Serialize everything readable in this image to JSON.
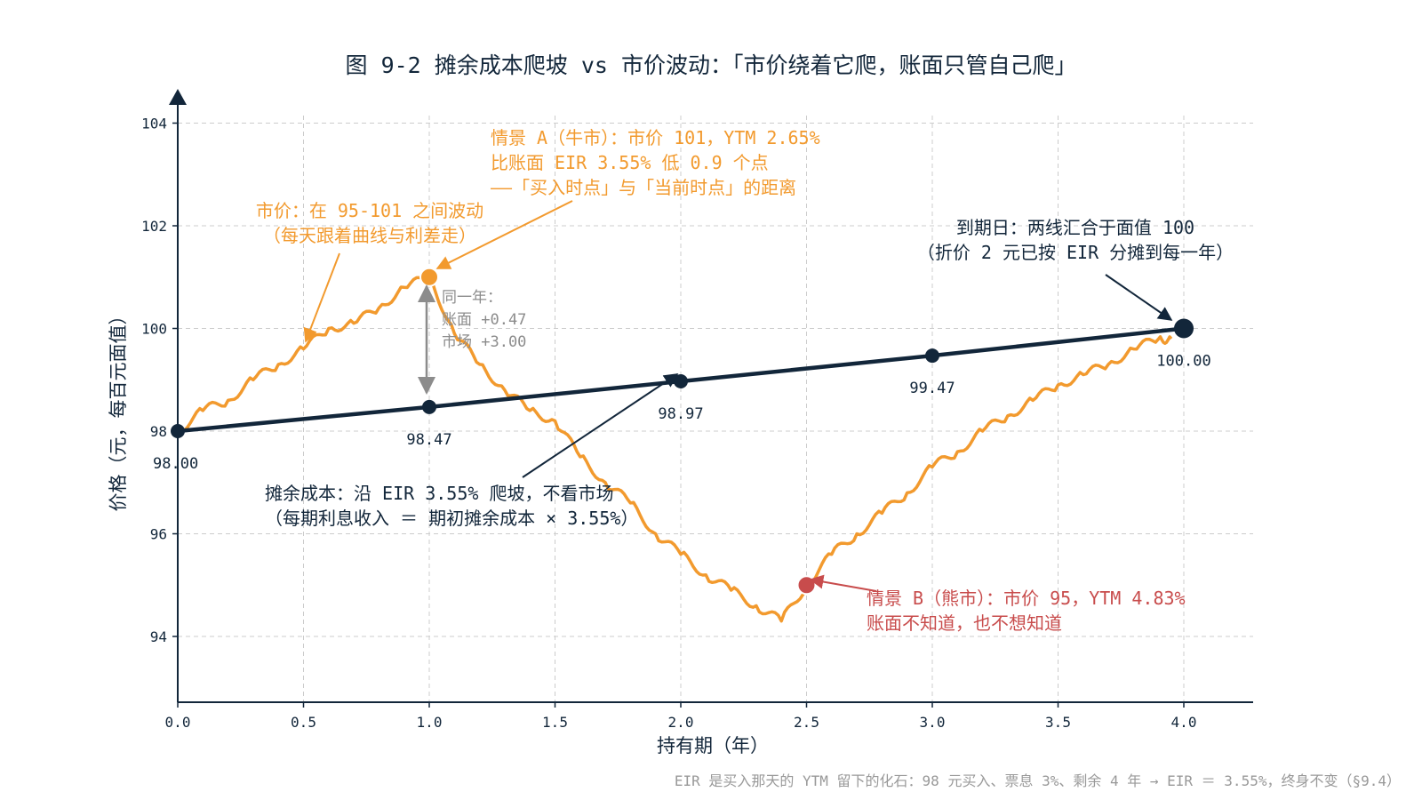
{
  "chart_data": {
    "type": "line",
    "title": "图 9-2 摊余成本爬坡 vs 市价波动：「市价绕着它爬，账面只管自己爬」",
    "xlabel": "持有期（年）",
    "ylabel": "价格（元，每百元面值）",
    "xlim": [
      0,
      4.35
    ],
    "ylim": [
      92.5,
      104.5
    ],
    "x_ticks": [
      "0.0",
      "0.5",
      "1.0",
      "1.5",
      "2.0",
      "2.5",
      "3.0",
      "3.5",
      "4.0"
    ],
    "y_ticks": [
      "94",
      "96",
      "98",
      "100",
      "102",
      "104"
    ],
    "grid": true,
    "series": [
      {
        "name": "摊余成本",
        "color": "#12263a",
        "x": [
          0,
          1,
          2,
          3,
          4
        ],
        "y": [
          98.0,
          98.47,
          98.97,
          99.47,
          100.0
        ],
        "labels": [
          "98.00",
          "98.47",
          "98.97",
          "99.47",
          "100.00"
        ]
      },
      {
        "name": "市价",
        "color": "#f29a2e",
        "x": [
          0,
          0.1,
          0.2,
          0.3,
          0.4,
          0.5,
          0.6,
          0.7,
          0.8,
          0.9,
          1.0,
          1.1,
          1.2,
          1.3,
          1.4,
          1.5,
          1.6,
          1.7,
          1.8,
          1.9,
          2.0,
          2.1,
          2.2,
          2.3,
          2.4,
          2.5,
          2.6,
          2.7,
          2.8,
          2.9,
          3.0,
          3.1,
          3.2,
          3.3,
          3.4,
          3.5,
          3.6,
          3.7,
          3.8,
          3.9,
          3.95
        ],
        "y": [
          98.0,
          98.4,
          98.6,
          99.0,
          99.3,
          99.6,
          100.0,
          100.1,
          100.4,
          100.8,
          101.0,
          99.9,
          99.3,
          98.8,
          98.4,
          98.2,
          97.5,
          97.0,
          96.6,
          96.0,
          95.6,
          95.2,
          94.9,
          94.6,
          94.3,
          95.0,
          95.6,
          96.0,
          96.4,
          96.8,
          97.3,
          97.6,
          98.0,
          98.3,
          98.6,
          98.9,
          99.1,
          99.3,
          99.6,
          99.8,
          99.8
        ]
      }
    ],
    "highlight_points": [
      {
        "x": 1.0,
        "y": 101.0,
        "color": "#f29a2e"
      },
      {
        "x": 2.5,
        "y": 95.0,
        "color": "#c84c4c"
      }
    ],
    "annotations": {
      "market_note": [
        "市价：在 95-101 之间波动",
        "（每天跟着曲线与利差走）"
      ],
      "scenario_a": [
        "情景 A（牛市）：市价 101，YTM 2.65%",
        "比账面 EIR 3.55% 低 0.9 个点",
        "——「买入时点」与「当前时点」的距离"
      ],
      "same_year": [
        "同一年：",
        "账面 +0.47",
        "市场 +3.00"
      ],
      "maturity": [
        "到期日：两线汇合于面值 100",
        "（折价 2 元已按 EIR 分摊到每一年）"
      ],
      "amortized": [
        "摊余成本：沿 EIR 3.55% 爬坡，不看市场",
        "（每期利息收入 ＝ 期初摊余成本 × 3.55%）"
      ],
      "scenario_b": [
        "情景 B（熊市）：市价 95，YTM 4.83%",
        "账面不知道，也不想知道"
      ]
    },
    "colors": {
      "navy": "#12263a",
      "orange": "#f29a2e",
      "red": "#c84c4c",
      "gray": "#8c8c8c",
      "grid": "#cccccc"
    }
  },
  "footnote": "EIR 是买入那天的 YTM 留下的化石：98 元买入、票息 3%、剩余 4 年 → EIR ＝ 3.55%，终身不变（§9.4）"
}
